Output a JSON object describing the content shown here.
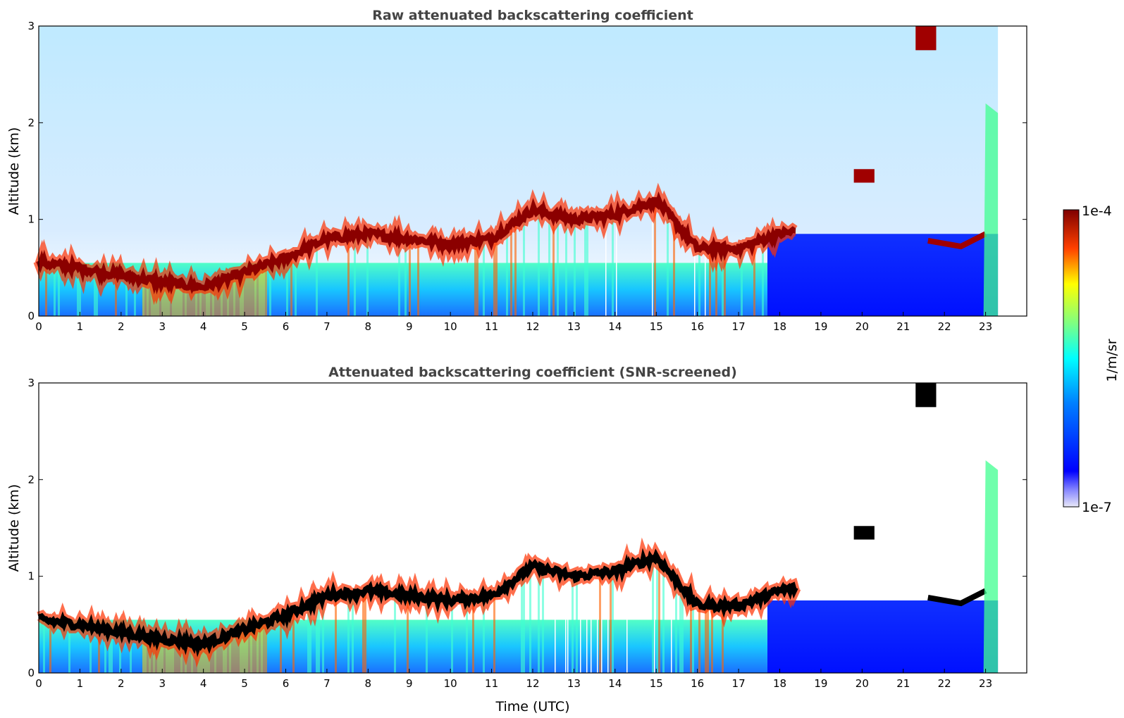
{
  "chart_data": [
    {
      "type": "heatmap",
      "title": "Raw attenuated backscattering coefficient",
      "xlabel": "",
      "ylabel": "Altitude (km)",
      "xlim": [
        0,
        24
      ],
      "ylim": [
        0,
        3
      ],
      "xticks": [
        "0",
        "1",
        "2",
        "3",
        "4",
        "5",
        "6",
        "7",
        "8",
        "9",
        "10",
        "11",
        "12",
        "13",
        "14",
        "15",
        "16",
        "17",
        "18",
        "19",
        "20",
        "21",
        "22",
        "23"
      ],
      "yticks": [
        "0",
        "1",
        "2",
        "3"
      ],
      "data_end_hour": 23.3,
      "cloud_layer": {
        "x": [
          0,
          1,
          2,
          3,
          4,
          5,
          6,
          7,
          8,
          9,
          10,
          11,
          12,
          13,
          14,
          15,
          16,
          17,
          18,
          18.4
        ],
        "altitude_km": [
          0.55,
          0.5,
          0.42,
          0.35,
          0.3,
          0.45,
          0.6,
          0.8,
          0.85,
          0.8,
          0.75,
          0.8,
          1.1,
          1.0,
          1.05,
          1.2,
          0.7,
          0.7,
          0.85,
          0.88
        ]
      }
    },
    {
      "type": "heatmap",
      "title": "Attenuated backscattering coefficient (SNR-screened)",
      "xlabel": "Time (UTC)",
      "ylabel": "Altitude (km)",
      "xlim": [
        0,
        24
      ],
      "ylim": [
        0,
        3
      ],
      "xticks": [
        "0",
        "1",
        "2",
        "3",
        "4",
        "5",
        "6",
        "7",
        "8",
        "9",
        "10",
        "11",
        "12",
        "13",
        "14",
        "15",
        "16",
        "17",
        "18",
        "19",
        "20",
        "21",
        "22",
        "23"
      ],
      "yticks": [
        "0",
        "1",
        "2",
        "3"
      ],
      "data_end_hour": 23.3
    }
  ],
  "colorbar": {
    "max_label": "1e-4",
    "min_label": "1e-7",
    "unit_label": "1/m/sr",
    "colormap": "jet",
    "scale": "log"
  },
  "colors": {
    "dark_red": "#7f0000",
    "red": "#ff0000",
    "yellow": "#ffff00",
    "cyan": "#00ffff",
    "blue": "#0000ff",
    "dark_blue": "#00007f"
  }
}
